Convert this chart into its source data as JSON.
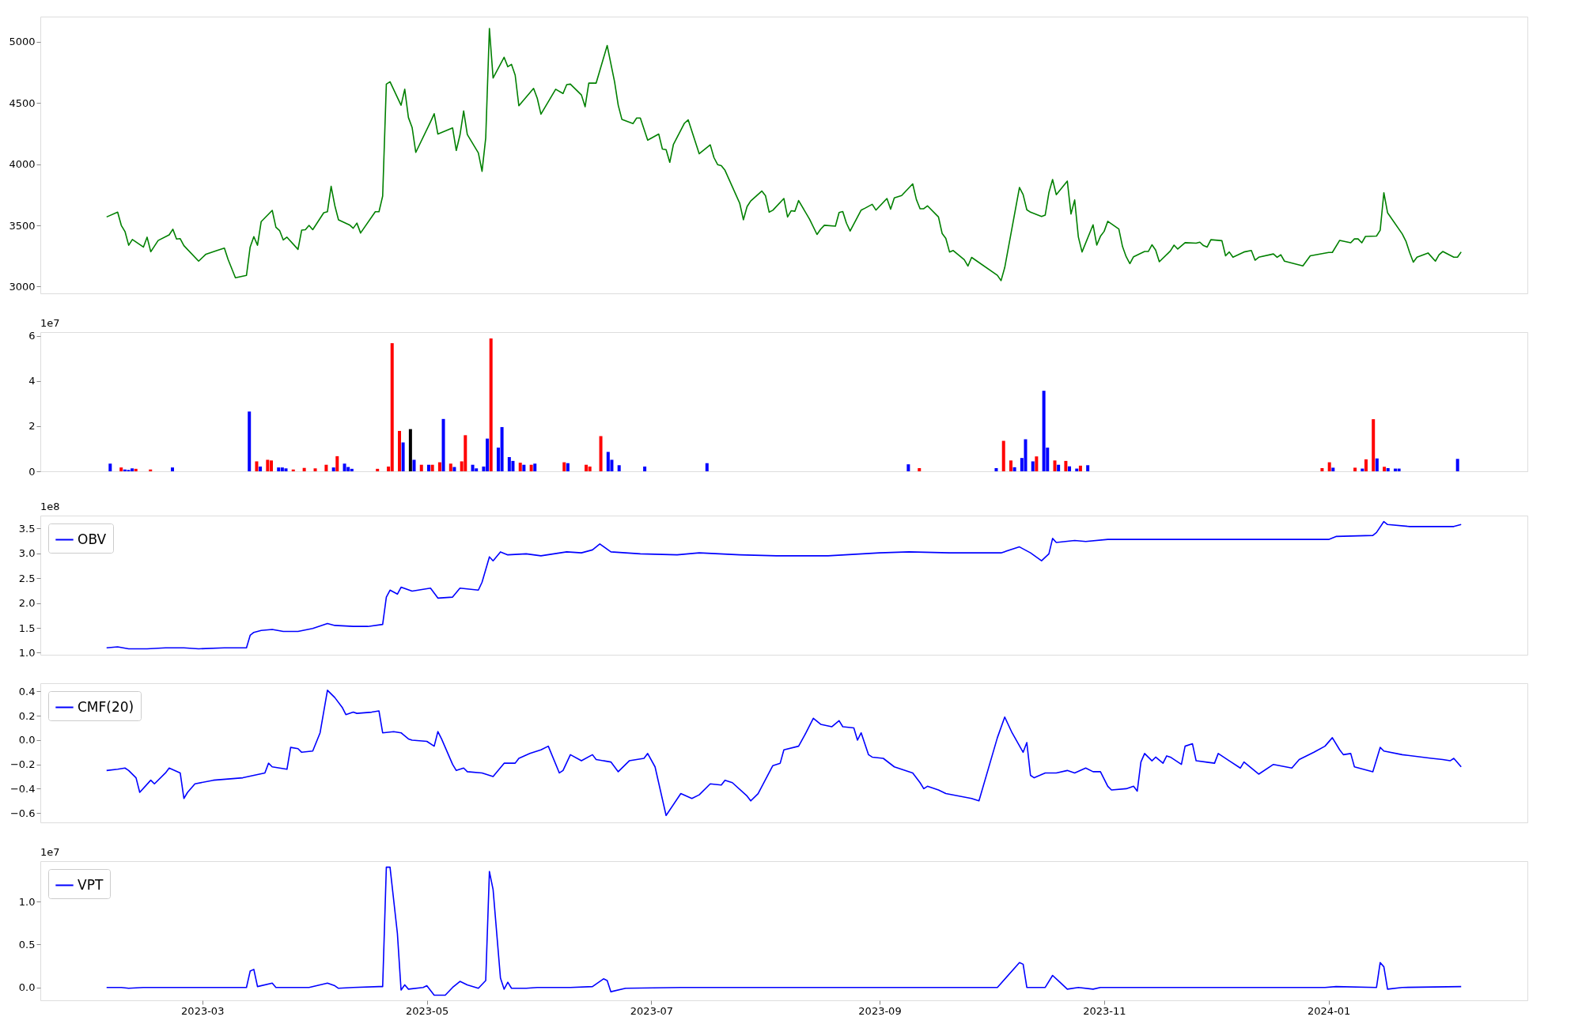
{
  "chart_data": [
    {
      "type": "line",
      "xlim": [
        "2023-01-16",
        "2024-02-24"
      ],
      "ylim": [
        2945,
        5205
      ],
      "yticks": [
        3000,
        3500,
        4000,
        4500,
        5000
      ],
      "tick_labels": "y",
      "series": [
        {
          "color": "#008000",
          "x": [
            "2023-02-03",
            "2023-02-06",
            "2023-02-07",
            "2023-02-08",
            "2023-02-09",
            "2023-02-10",
            "2023-02-13",
            "2023-02-14",
            "2023-02-15",
            "2023-02-17",
            "2023-02-20",
            "2023-02-21",
            "2023-02-22",
            "2023-02-23",
            "2023-02-24",
            "2023-02-28",
            "2023-03-02",
            "2023-03-05",
            "2023-03-07",
            "2023-03-08",
            "2023-03-10",
            "2023-03-13",
            "2023-03-14",
            "2023-03-15",
            "2023-03-16",
            "2023-03-17",
            "2023-03-20",
            "2023-03-21",
            "2023-03-22",
            "2023-03-23",
            "2023-03-24",
            "2023-03-27",
            "2023-03-28",
            "2023-03-29",
            "2023-03-30",
            "2023-03-31",
            "2023-04-03",
            "2023-04-04",
            "2023-04-05",
            "2023-04-06",
            "2023-04-07",
            "2023-04-10",
            "2023-04-11",
            "2023-04-12",
            "2023-04-13",
            "2023-04-17",
            "2023-04-18",
            "2023-04-19",
            "2023-04-20",
            "2023-04-21",
            "2023-04-24",
            "2023-04-25",
            "2023-04-26",
            "2023-04-27",
            "2023-04-28",
            "2023-05-02",
            "2023-05-03",
            "2023-05-04",
            "2023-05-08",
            "2023-05-09",
            "2023-05-10",
            "2023-05-11",
            "2023-05-12",
            "2023-05-15",
            "2023-05-16",
            "2023-05-17",
            "2023-05-18",
            "2023-05-19",
            "2023-05-22",
            "2023-05-23",
            "2023-05-24",
            "2023-05-25",
            "2023-05-26",
            "2023-05-30",
            "2023-05-31",
            "2023-06-01",
            "2023-06-05",
            "2023-06-07",
            "2023-06-08",
            "2023-06-09",
            "2023-06-12",
            "2023-06-13",
            "2023-06-14",
            "2023-06-16",
            "2023-06-19",
            "2023-06-21",
            "2023-06-22",
            "2023-06-23",
            "2023-06-26",
            "2023-06-27",
            "2023-06-28",
            "2023-06-30",
            "2023-07-03",
            "2023-07-04",
            "2023-07-05",
            "2023-07-06",
            "2023-07-07",
            "2023-07-10",
            "2023-07-11",
            "2023-07-14",
            "2023-07-17",
            "2023-07-18",
            "2023-07-19",
            "2023-07-20",
            "2023-07-21",
            "2023-07-25",
            "2023-07-26",
            "2023-07-27",
            "2023-07-28",
            "2023-07-31",
            "2023-08-01",
            "2023-08-02",
            "2023-08-03",
            "2023-08-06",
            "2023-08-07",
            "2023-08-08",
            "2023-08-09",
            "2023-08-10",
            "2023-08-13",
            "2023-08-15",
            "2023-08-16",
            "2023-08-17",
            "2023-08-20",
            "2023-08-21",
            "2023-08-22",
            "2023-08-23",
            "2023-08-24",
            "2023-08-27",
            "2023-08-28",
            "2023-08-30",
            "2023-08-31",
            "2023-09-03",
            "2023-09-04",
            "2023-09-05",
            "2023-09-07",
            "2023-09-10",
            "2023-09-11",
            "2023-09-12",
            "2023-09-13",
            "2023-09-14",
            "2023-09-17",
            "2023-09-18",
            "2023-09-19",
            "2023-09-20",
            "2023-09-21",
            "2023-09-24",
            "2023-09-25",
            "2023-09-26",
            "2023-10-03",
            "2023-10-04",
            "2023-10-05",
            "2023-10-09",
            "2023-10-10",
            "2023-10-11",
            "2023-10-12",
            "2023-10-15",
            "2023-10-16",
            "2023-10-17",
            "2023-10-18",
            "2023-10-19",
            "2023-10-22",
            "2023-10-23",
            "2023-10-24",
            "2023-10-25",
            "2023-10-26",
            "2023-10-29",
            "2023-10-30",
            "2023-10-31",
            "2023-11-01",
            "2023-11-02",
            "2023-11-05",
            "2023-11-06",
            "2023-11-07",
            "2023-11-08",
            "2023-11-09",
            "2023-11-12",
            "2023-11-13",
            "2023-11-14",
            "2023-11-15",
            "2023-11-16",
            "2023-11-19",
            "2023-11-20",
            "2023-11-21",
            "2023-11-23",
            "2023-11-26",
            "2023-11-27",
            "2023-11-28",
            "2023-11-29",
            "2023-11-30",
            "2023-12-03",
            "2023-12-04",
            "2023-12-05",
            "2023-12-06",
            "2023-12-09",
            "2023-12-11",
            "2023-12-12",
            "2023-12-13",
            "2023-12-17",
            "2023-12-18",
            "2023-12-19",
            "2023-12-20",
            "2023-12-25",
            "2023-12-27",
            "2024-01-01",
            "2024-01-02",
            "2024-01-04",
            "2024-01-07",
            "2024-01-08",
            "2024-01-09",
            "2024-01-10",
            "2024-01-11",
            "2024-01-14",
            "2024-01-15",
            "2024-01-16",
            "2024-01-17",
            "2024-01-21",
            "2024-01-22",
            "2024-01-23",
            "2024-01-24",
            "2024-01-25",
            "2024-01-28",
            "2024-01-30",
            "2024-01-31",
            "2024-02-01",
            "2024-02-04",
            "2024-02-05",
            "2024-02-06"
          ],
          "values": [
            3569,
            3608,
            3500,
            3450,
            3338,
            3385,
            3323,
            3404,
            3285,
            3377,
            3423,
            3469,
            3389,
            3392,
            3335,
            3208,
            3265,
            3296,
            3315,
            3223,
            3073,
            3092,
            3323,
            3408,
            3338,
            3531,
            3623,
            3485,
            3458,
            3381,
            3404,
            3304,
            3462,
            3465,
            3500,
            3465,
            3604,
            3612,
            3819,
            3662,
            3546,
            3504,
            3477,
            3519,
            3438,
            3612,
            3612,
            3739,
            4654,
            4673,
            4481,
            4612,
            4381,
            4300,
            4096,
            4346,
            4412,
            4246,
            4296,
            4112,
            4238,
            4435,
            4242,
            4092,
            3942,
            4215,
            5108,
            4704,
            4873,
            4796,
            4815,
            4727,
            4477,
            4619,
            4538,
            4408,
            4612,
            4577,
            4650,
            4654,
            4565,
            4469,
            4662,
            4662,
            4969,
            4673,
            4481,
            4365,
            4331,
            4377,
            4377,
            4196,
            4246,
            4123,
            4119,
            4015,
            4162,
            4335,
            4362,
            4085,
            4158,
            4054,
            3996,
            3988,
            3950,
            3681,
            3546,
            3654,
            3700,
            3781,
            3743,
            3608,
            3624,
            3720,
            3569,
            3620,
            3616,
            3703,
            3549,
            3426,
            3470,
            3501,
            3494,
            3605,
            3613,
            3518,
            3454,
            3625,
            3640,
            3672,
            3625,
            3720,
            3632,
            3724,
            3744,
            3839,
            3711,
            3636,
            3636,
            3660,
            3569,
            3434,
            3394,
            3283,
            3295,
            3220,
            3168,
            3239,
            3093,
            3049,
            3156,
            3810,
            3751,
            3628,
            3608,
            3573,
            3585,
            3768,
            3875,
            3751,
            3862,
            3593,
            3708,
            3406,
            3283,
            3505,
            3339,
            3411,
            3451,
            3534,
            3470,
            3327,
            3244,
            3188,
            3244,
            3287,
            3287,
            3342,
            3299,
            3203,
            3291,
            3339,
            3307,
            3359,
            3355,
            3363,
            3335,
            3323,
            3383,
            3375,
            3252,
            3283,
            3240,
            3283,
            3295,
            3216,
            3240,
            3267,
            3240,
            3260,
            3208,
            3169,
            3252,
            3279,
            3279,
            3378,
            3358,
            3390,
            3390,
            3358,
            3410,
            3413,
            3461,
            3767,
            3604,
            3430,
            3371,
            3279,
            3200,
            3240,
            3275,
            3208,
            3260,
            3287,
            3240,
            3240,
            3283
          ]
        }
      ]
    },
    {
      "type": "bar",
      "xlim": [
        "2023-01-16",
        "2024-02-24"
      ],
      "ylim": [
        0,
        6.17
      ],
      "yticks": [
        0,
        2,
        4,
        6
      ],
      "tick_labels": "y",
      "annotations": [
        "1e7"
      ],
      "x": [
        "2023-02-03",
        "2023-02-06",
        "2023-02-07",
        "2023-02-08",
        "2023-02-09",
        "2023-02-10",
        "2023-02-14",
        "2023-02-20",
        "2023-03-13",
        "2023-03-15",
        "2023-03-16",
        "2023-03-18",
        "2023-03-19",
        "2023-03-21",
        "2023-03-22",
        "2023-03-23",
        "2023-03-25",
        "2023-03-28",
        "2023-03-31",
        "2023-04-03",
        "2023-04-05",
        "2023-04-06",
        "2023-04-08",
        "2023-04-09",
        "2023-04-10",
        "2023-04-17",
        "2023-04-20",
        "2023-04-21",
        "2023-04-23",
        "2023-04-24",
        "2023-04-26",
        "2023-04-27",
        "2023-04-29",
        "2023-05-01",
        "2023-05-02",
        "2023-05-04",
        "2023-05-05",
        "2023-05-07",
        "2023-05-08",
        "2023-05-10",
        "2023-05-11",
        "2023-05-13",
        "2023-05-14",
        "2023-05-16",
        "2023-05-17",
        "2023-05-18",
        "2023-05-20",
        "2023-05-21",
        "2023-05-23",
        "2023-05-24",
        "2023-05-26",
        "2023-05-27",
        "2023-05-29",
        "2023-05-30",
        "2023-06-07",
        "2023-06-08",
        "2023-06-13",
        "2023-06-14",
        "2023-06-17",
        "2023-06-19",
        "2023-06-20",
        "2023-06-22",
        "2023-06-29",
        "2023-07-16",
        "2023-09-09",
        "2023-09-12",
        "2023-10-03",
        "2023-10-05",
        "2023-10-07",
        "2023-10-08",
        "2023-10-10",
        "2023-10-11",
        "2023-10-13",
        "2023-10-14",
        "2023-10-16",
        "2023-10-17",
        "2023-10-19",
        "2023-10-20",
        "2023-10-22",
        "2023-10-23",
        "2023-10-25",
        "2023-10-26",
        "2023-10-28",
        "2023-12-31",
        "2024-01-02",
        "2024-01-03",
        "2024-01-09",
        "2024-01-11",
        "2024-01-12",
        "2024-01-14",
        "2024-01-15",
        "2024-01-17",
        "2024-01-18",
        "2024-01-20",
        "2024-01-21",
        "2024-02-06"
      ],
      "values": [
        0.34,
        0.17,
        0.08,
        0.06,
        0.13,
        0.11,
        0.08,
        0.17,
        2.65,
        0.44,
        0.21,
        0.51,
        0.48,
        0.17,
        0.17,
        0.13,
        0.08,
        0.15,
        0.13,
        0.29,
        0.17,
        0.67,
        0.34,
        0.19,
        0.11,
        0.11,
        0.21,
        5.68,
        1.79,
        1.28,
        1.87,
        0.51,
        0.29,
        0.29,
        0.29,
        0.4,
        2.32,
        0.34,
        0.19,
        0.44,
        1.6,
        0.29,
        0.13,
        0.21,
        1.45,
        5.89,
        1.05,
        1.96,
        0.63,
        0.46,
        0.38,
        0.29,
        0.29,
        0.34,
        0.4,
        0.36,
        0.29,
        0.21,
        1.56,
        0.86,
        0.51,
        0.27,
        0.21,
        0.36,
        0.31,
        0.14,
        0.14,
        1.35,
        0.48,
        0.18,
        0.59,
        1.42,
        0.44,
        0.66,
        3.57,
        1.05,
        0.48,
        0.29,
        0.46,
        0.22,
        0.12,
        0.25,
        0.27,
        0.14,
        0.4,
        0.16,
        0.16,
        0.12,
        0.53,
        2.31,
        0.57,
        0.2,
        0.14,
        0.12,
        0.12,
        0.55
      ],
      "colors": [
        "#0000ff",
        "#ff0000",
        "#0000ff",
        "#0000ff",
        "#0000ff",
        "#ff0000",
        "#ff0000",
        "#0000ff",
        "#0000ff",
        "#ff0000",
        "#0000ff",
        "#ff0000",
        "#ff0000",
        "#0000ff",
        "#0000ff",
        "#0000ff",
        "#ff0000",
        "#ff0000",
        "#ff0000",
        "#ff0000",
        "#0000ff",
        "#ff0000",
        "#0000ff",
        "#0000ff",
        "#0000ff",
        "#ff0000",
        "#ff0000",
        "#ff0000",
        "#ff0000",
        "#0000ff",
        "#000000",
        "#0000ff",
        "#ff0000",
        "#0000ff",
        "#ff0000",
        "#ff0000",
        "#0000ff",
        "#ff0000",
        "#0000ff",
        "#ff0000",
        "#ff0000",
        "#0000ff",
        "#0000ff",
        "#0000ff",
        "#0000ff",
        "#ff0000",
        "#0000ff",
        "#0000ff",
        "#0000ff",
        "#0000ff",
        "#ff0000",
        "#0000ff",
        "#ff0000",
        "#0000ff",
        "#ff0000",
        "#0000ff",
        "#ff0000",
        "#ff0000",
        "#ff0000",
        "#0000ff",
        "#0000ff",
        "#0000ff",
        "#0000ff",
        "#0000ff",
        "#0000ff",
        "#ff0000",
        "#0000ff",
        "#ff0000",
        "#ff0000",
        "#0000ff",
        "#0000ff",
        "#0000ff",
        "#0000ff",
        "#ff0000",
        "#0000ff",
        "#0000ff",
        "#ff0000",
        "#0000ff",
        "#ff0000",
        "#0000ff",
        "#0000ff",
        "#ff0000",
        "#0000ff",
        "#ff0000",
        "#ff0000",
        "#0000ff",
        "#ff0000",
        "#0000ff",
        "#ff0000",
        "#ff0000",
        "#0000ff",
        "#ff0000",
        "#0000ff",
        "#0000ff",
        "#0000ff",
        "#0000ff"
      ]
    },
    {
      "type": "line",
      "xlim": [
        "2023-01-16",
        "2024-02-24"
      ],
      "ylim": [
        0.96,
        3.76
      ],
      "yticks": [
        {
          "value": 1,
          "label": "1.0"
        },
        1.5,
        {
          "value": 2,
          "label": "2.0"
        },
        2.5,
        {
          "value": 3,
          "label": "3.0"
        },
        3.5
      ],
      "tick_labels": "y",
      "legend": "top left",
      "annotations": [
        "1e8"
      ],
      "series": [
        {
          "name": "OBV",
          "color": "#0000ff",
          "x": [
            "2023-02-03",
            "2023-02-06",
            "2023-02-09",
            "2023-02-14",
            "2023-02-19",
            "2023-02-24",
            "2023-02-28",
            "2023-03-07",
            "2023-03-13",
            "2023-03-14",
            "2023-03-15",
            "2023-03-17",
            "2023-03-20",
            "2023-03-23",
            "2023-03-27",
            "2023-03-31",
            "2023-04-04",
            "2023-04-06",
            "2023-04-11",
            "2023-04-15",
            "2023-04-19",
            "2023-04-20",
            "2023-04-21",
            "2023-04-23",
            "2023-04-24",
            "2023-04-27",
            "2023-05-02",
            "2023-05-04",
            "2023-05-08",
            "2023-05-10",
            "2023-05-15",
            "2023-05-16",
            "2023-05-18",
            "2023-05-19",
            "2023-05-21",
            "2023-05-23",
            "2023-05-28",
            "2023-06-01",
            "2023-06-08",
            "2023-06-12",
            "2023-06-15",
            "2023-06-17",
            "2023-06-20",
            "2023-06-28",
            "2023-07-08",
            "2023-07-14",
            "2023-07-25",
            "2023-08-04",
            "2023-08-18",
            "2023-09-01",
            "2023-09-09",
            "2023-09-20",
            "2023-09-30",
            "2023-10-04",
            "2023-10-09",
            "2023-10-12",
            "2023-10-15",
            "2023-10-17",
            "2023-10-18",
            "2023-10-19",
            "2023-10-24",
            "2023-10-27",
            "2023-11-02",
            "2023-11-21",
            "2023-12-18",
            "2024-01-01",
            "2024-01-03",
            "2024-01-13",
            "2024-01-14",
            "2024-01-16",
            "2024-01-17",
            "2024-01-23",
            "2024-01-30",
            "2024-02-04",
            "2024-02-06"
          ],
          "values": [
            1.1,
            1.12,
            1.08,
            1.08,
            1.1,
            1.1,
            1.08,
            1.1,
            1.1,
            1.35,
            1.41,
            1.45,
            1.47,
            1.43,
            1.43,
            1.49,
            1.59,
            1.55,
            1.53,
            1.53,
            1.57,
            2.12,
            2.26,
            2.18,
            2.32,
            2.24,
            2.3,
            2.1,
            2.12,
            2.3,
            2.26,
            2.42,
            2.93,
            2.85,
            3.03,
            2.97,
            2.99,
            2.95,
            3.03,
            3.01,
            3.07,
            3.19,
            3.03,
            2.99,
            2.97,
            3.01,
            2.97,
            2.95,
            2.95,
            3.01,
            3.03,
            3.01,
            3.01,
            3.01,
            3.13,
            3.01,
            2.85,
            2.99,
            3.3,
            3.22,
            3.26,
            3.24,
            3.28,
            3.28,
            3.28,
            3.28,
            3.34,
            3.36,
            3.42,
            3.64,
            3.58,
            3.54,
            3.54,
            3.54,
            3.58
          ]
        }
      ]
    },
    {
      "type": "line",
      "xlim": [
        "2023-01-16",
        "2024-02-24"
      ],
      "ylim": [
        -0.677,
        0.468
      ],
      "yticks": [
        {
          "value": -0.6,
          "label": "−0.6"
        },
        {
          "value": -0.4,
          "label": "−0.4"
        },
        {
          "value": -0.2,
          "label": "−0.2"
        },
        {
          "value": 0,
          "label": "0.0"
        },
        {
          "value": 0.2,
          "label": "0.2"
        },
        {
          "value": 0.4,
          "label": "0.4"
        }
      ],
      "tick_labels": "y",
      "legend": "top left",
      "series": [
        {
          "name": "CMF(20)",
          "color": "#0000ff",
          "x": [
            "2023-02-03",
            "2023-02-06",
            "2023-02-08",
            "2023-02-09",
            "2023-02-11",
            "2023-02-12",
            "2023-02-15",
            "2023-02-16",
            "2023-02-19",
            "2023-02-20",
            "2023-02-23",
            "2023-02-24",
            "2023-02-25",
            "2023-02-27",
            "2023-03-04",
            "2023-03-08",
            "2023-03-12",
            "2023-03-15",
            "2023-03-18",
            "2023-03-19",
            "2023-03-20",
            "2023-03-24",
            "2023-03-25",
            "2023-03-27",
            "2023-03-28",
            "2023-03-31",
            "2023-04-02",
            "2023-04-04",
            "2023-04-06",
            "2023-04-08",
            "2023-04-09",
            "2023-04-11",
            "2023-04-12",
            "2023-04-16",
            "2023-04-18",
            "2023-04-19",
            "2023-04-22",
            "2023-04-24",
            "2023-04-26",
            "2023-04-27",
            "2023-05-01",
            "2023-05-03",
            "2023-05-04",
            "2023-05-05",
            "2023-05-08",
            "2023-05-09",
            "2023-05-11",
            "2023-05-12",
            "2023-05-16",
            "2023-05-19",
            "2023-05-22",
            "2023-05-25",
            "2023-05-26",
            "2023-05-29",
            "2023-06-01",
            "2023-06-03",
            "2023-06-06",
            "2023-06-07",
            "2023-06-09",
            "2023-06-12",
            "2023-06-15",
            "2023-06-16",
            "2023-06-20",
            "2023-06-22",
            "2023-06-25",
            "2023-06-29",
            "2023-06-30",
            "2023-07-02",
            "2023-07-05",
            "2023-07-09",
            "2023-07-12",
            "2023-07-14",
            "2023-07-17",
            "2023-07-20",
            "2023-07-21",
            "2023-07-23",
            "2023-07-27",
            "2023-07-28",
            "2023-07-30",
            "2023-08-03",
            "2023-08-05",
            "2023-08-06",
            "2023-08-10",
            "2023-08-12",
            "2023-08-14",
            "2023-08-16",
            "2023-08-19",
            "2023-08-21",
            "2023-08-22",
            "2023-08-25",
            "2023-08-26",
            "2023-08-27",
            "2023-08-29",
            "2023-08-30",
            "2023-09-02",
            "2023-09-05",
            "2023-09-10",
            "2023-09-12",
            "2023-09-13",
            "2023-09-14",
            "2023-09-17",
            "2023-09-19",
            "2023-09-26",
            "2023-09-28",
            "2023-10-03",
            "2023-10-05",
            "2023-10-07",
            "2023-10-10",
            "2023-10-11",
            "2023-10-12",
            "2023-10-13",
            "2023-10-16",
            "2023-10-19",
            "2023-10-22",
            "2023-10-24",
            "2023-10-27",
            "2023-10-29",
            "2023-10-31",
            "2023-11-02",
            "2023-11-03",
            "2023-11-07",
            "2023-11-09",
            "2023-11-10",
            "2023-11-11",
            "2023-11-12",
            "2023-11-14",
            "2023-11-15",
            "2023-11-17",
            "2023-11-18",
            "2023-11-19",
            "2023-11-22",
            "2023-11-23",
            "2023-11-25",
            "2023-11-26",
            "2023-12-01",
            "2023-12-02",
            "2023-12-05",
            "2023-12-08",
            "2023-12-09",
            "2023-12-13",
            "2023-12-17",
            "2023-12-22",
            "2023-12-24",
            "2023-12-28",
            "2023-12-31",
            "2024-01-02",
            "2024-01-04",
            "2024-01-05",
            "2024-01-07",
            "2024-01-08",
            "2024-01-13",
            "2024-01-15",
            "2024-01-16",
            "2024-01-21",
            "2024-01-29",
            "2024-02-01",
            "2024-02-03",
            "2024-02-04",
            "2024-02-06"
          ],
          "values": [
            -0.25,
            -0.24,
            -0.23,
            -0.25,
            -0.31,
            -0.43,
            -0.33,
            -0.36,
            -0.27,
            -0.23,
            -0.27,
            -0.48,
            -0.43,
            -0.36,
            -0.33,
            -0.32,
            -0.31,
            -0.29,
            -0.27,
            -0.19,
            -0.22,
            -0.24,
            -0.06,
            -0.07,
            -0.1,
            -0.09,
            0.06,
            0.41,
            0.35,
            0.27,
            0.21,
            0.23,
            0.22,
            0.23,
            0.24,
            0.06,
            0.07,
            0.06,
            0.01,
            0.0,
            -0.01,
            -0.05,
            0.07,
            0.01,
            -0.2,
            -0.25,
            -0.23,
            -0.26,
            -0.27,
            -0.3,
            -0.19,
            -0.19,
            -0.15,
            -0.11,
            -0.08,
            -0.05,
            -0.27,
            -0.25,
            -0.12,
            -0.17,
            -0.12,
            -0.16,
            -0.18,
            -0.26,
            -0.17,
            -0.15,
            -0.11,
            -0.22,
            -0.62,
            -0.44,
            -0.48,
            -0.45,
            -0.36,
            -0.37,
            -0.33,
            -0.35,
            -0.46,
            -0.5,
            -0.44,
            -0.21,
            -0.19,
            -0.08,
            -0.05,
            0.06,
            0.18,
            0.13,
            0.11,
            0.16,
            0.11,
            0.1,
            0.0,
            0.06,
            -0.12,
            -0.14,
            -0.15,
            -0.22,
            -0.27,
            -0.35,
            -0.4,
            -0.38,
            -0.41,
            -0.44,
            -0.48,
            -0.5,
            0.02,
            0.19,
            0.06,
            -0.1,
            -0.02,
            -0.29,
            -0.31,
            -0.27,
            -0.27,
            -0.25,
            -0.27,
            -0.23,
            -0.26,
            -0.26,
            -0.38,
            -0.41,
            -0.4,
            -0.38,
            -0.42,
            -0.18,
            -0.11,
            -0.17,
            -0.14,
            -0.19,
            -0.13,
            -0.14,
            -0.2,
            -0.05,
            -0.03,
            -0.17,
            -0.19,
            -0.11,
            -0.17,
            -0.23,
            -0.18,
            -0.28,
            -0.2,
            -0.23,
            -0.16,
            -0.1,
            -0.05,
            0.02,
            -0.08,
            -0.12,
            -0.11,
            -0.22,
            -0.26,
            -0.06,
            -0.09,
            -0.12,
            -0.15,
            -0.16,
            -0.17,
            -0.15,
            -0.22
          ]
        }
      ]
    },
    {
      "type": "line",
      "xlim": [
        "2023-01-16",
        "2024-02-24"
      ],
      "ylim": [
        -0.15,
        1.47
      ],
      "yticks": [
        {
          "value": 0,
          "label": "0.0"
        },
        0.5,
        {
          "value": 1,
          "label": "1.0"
        }
      ],
      "xticks": [
        {
          "value": "2023-03-01",
          "label": "2023-03"
        },
        {
          "value": "2023-05-01",
          "label": "2023-05"
        },
        {
          "value": "2023-07-01",
          "label": "2023-07"
        },
        {
          "value": "2023-09-01",
          "label": "2023-09"
        },
        {
          "value": "2023-11-01",
          "label": "2023-11"
        },
        {
          "value": "2024-01-01",
          "label": "2024-01"
        }
      ],
      "legend": "top left",
      "annotations": [
        "1e7"
      ],
      "series": [
        {
          "name": "VPT",
          "color": "#0000ff",
          "x": [
            "2023-02-03",
            "2023-02-07",
            "2023-02-09",
            "2023-02-13",
            "2023-02-19",
            "2023-02-24",
            "2023-03-04",
            "2023-03-13",
            "2023-03-14",
            "2023-03-15",
            "2023-03-16",
            "2023-03-20",
            "2023-03-21",
            "2023-03-23",
            "2023-03-27",
            "2023-03-30",
            "2023-04-04",
            "2023-04-06",
            "2023-04-07",
            "2023-04-11",
            "2023-04-18",
            "2023-04-19",
            "2023-04-20",
            "2023-04-21",
            "2023-04-23",
            "2023-04-24",
            "2023-04-25",
            "2023-04-26",
            "2023-04-30",
            "2023-05-01",
            "2023-05-03",
            "2023-05-06",
            "2023-05-08",
            "2023-05-10",
            "2023-05-12",
            "2023-05-15",
            "2023-05-17",
            "2023-05-18",
            "2023-05-19",
            "2023-05-21",
            "2023-05-22",
            "2023-05-23",
            "2023-05-24",
            "2023-05-28",
            "2023-05-31",
            "2023-06-09",
            "2023-06-15",
            "2023-06-18",
            "2023-06-19",
            "2023-06-20",
            "2023-06-24",
            "2023-07-09",
            "2023-08-05",
            "2023-09-01",
            "2023-10-03",
            "2023-10-09",
            "2023-10-10",
            "2023-10-11",
            "2023-10-16",
            "2023-10-18",
            "2023-10-20",
            "2023-10-22",
            "2023-10-25",
            "2023-10-29",
            "2023-10-31",
            "2023-11-20",
            "2023-12-31",
            "2024-01-03",
            "2024-01-14",
            "2024-01-15",
            "2024-01-16",
            "2024-01-17",
            "2024-01-21",
            "2024-02-06"
          ],
          "values": [
            0,
            0,
            -0.01,
            0,
            0,
            0,
            0,
            0,
            0.19,
            0.21,
            0.01,
            0.05,
            0,
            0,
            0,
            0,
            0.05,
            0.02,
            -0.01,
            0,
            0.01,
            0.01,
            1.4,
            1.4,
            0.63,
            -0.03,
            0.03,
            -0.02,
            0,
            0.02,
            -0.09,
            -0.09,
            0,
            0.07,
            0.03,
            -0.01,
            0.08,
            1.35,
            1.14,
            0.11,
            -0.02,
            0.06,
            -0.01,
            -0.01,
            0,
            0,
            0.01,
            0.1,
            0.08,
            -0.05,
            -0.01,
            0,
            0,
            0,
            0,
            0.29,
            0.27,
            0,
            0,
            0.14,
            0.06,
            -0.02,
            0,
            -0.02,
            0,
            0,
            0,
            0.01,
            0,
            0.29,
            0.24,
            -0.02,
            0,
            0.01
          ]
        }
      ]
    }
  ]
}
